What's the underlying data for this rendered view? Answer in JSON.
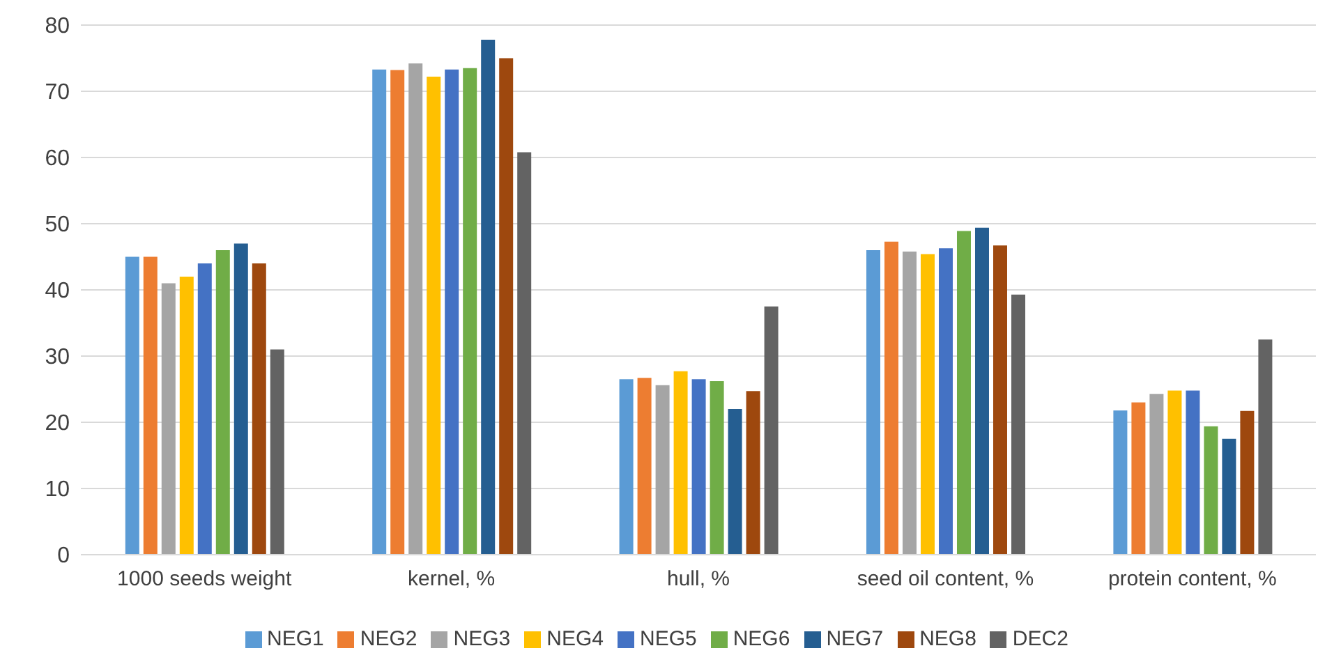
{
  "chart_data": {
    "type": "bar",
    "categories": [
      "1000 seeds weight",
      "kernel, %",
      "hull, %",
      "seed oil content, %",
      "protein content, %"
    ],
    "series": [
      {
        "name": "NEG1",
        "color": "#5b9bd5",
        "values": [
          45,
          73.3,
          26.5,
          46,
          21.8
        ]
      },
      {
        "name": "NEG2",
        "color": "#ed7d31",
        "values": [
          45,
          73.2,
          26.7,
          47.3,
          23
        ]
      },
      {
        "name": "NEG3",
        "color": "#a5a5a5",
        "values": [
          41,
          74.2,
          25.6,
          45.8,
          24.3
        ]
      },
      {
        "name": "NEG4",
        "color": "#ffc000",
        "values": [
          42,
          72.2,
          27.7,
          45.4,
          24.8
        ]
      },
      {
        "name": "NEG5",
        "color": "#4472c4",
        "values": [
          44,
          73.3,
          26.5,
          46.3,
          24.8
        ]
      },
      {
        "name": "NEG6",
        "color": "#70ad47",
        "values": [
          46,
          73.5,
          26.2,
          48.9,
          19.4
        ]
      },
      {
        "name": "NEG7",
        "color": "#255e91",
        "values": [
          47,
          77.8,
          22,
          49.4,
          17.5
        ]
      },
      {
        "name": "NEG8",
        "color": "#9e480e",
        "values": [
          44,
          75,
          24.7,
          46.7,
          21.7
        ]
      },
      {
        "name": "DEC2",
        "color": "#636363",
        "values": [
          31,
          60.8,
          37.5,
          39.3,
          32.5
        ]
      }
    ],
    "ylim": [
      0,
      80
    ],
    "yticks": [
      0,
      10,
      20,
      30,
      40,
      50,
      60,
      70,
      80
    ],
    "grid": "y",
    "legend": "bottom"
  }
}
